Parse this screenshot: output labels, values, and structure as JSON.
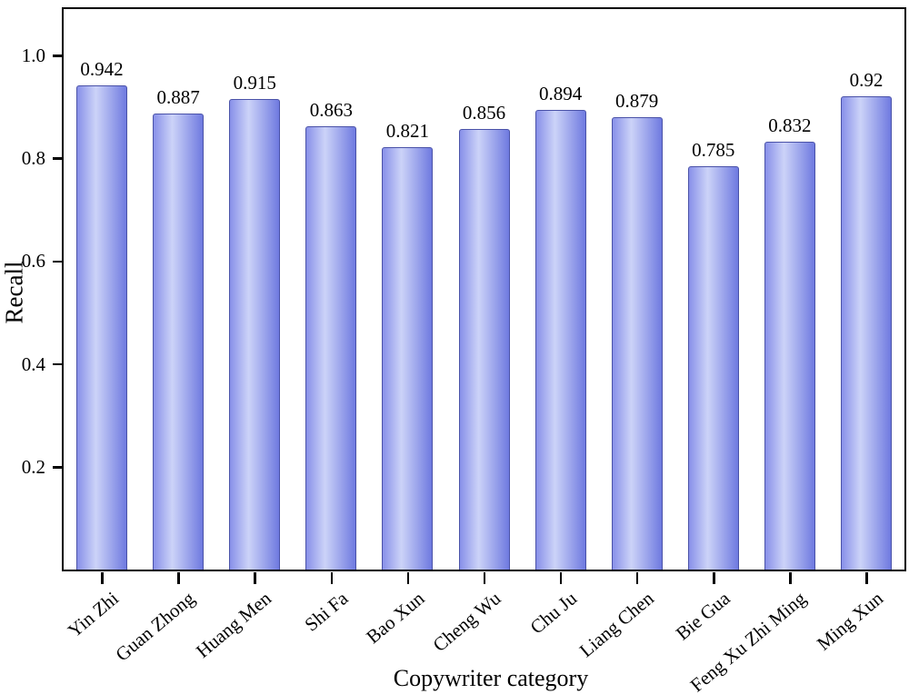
{
  "chart_data": {
    "type": "bar",
    "title": "",
    "xlabel": "Copywriter category",
    "ylabel": "Recall",
    "categories": [
      "Yin Zhi",
      "Guan Zhong",
      "Huang Men",
      "Shi Fa",
      "Bao Xun",
      "Cheng Wu",
      "Chu Ju",
      "Liang Chen",
      "Bie Gua",
      "Feng Xu Zhi Ming",
      "Ming Xun"
    ],
    "values": [
      0.942,
      0.887,
      0.915,
      0.863,
      0.821,
      0.856,
      0.894,
      0.879,
      0.785,
      0.832,
      0.92
    ],
    "value_labels": [
      "0.942",
      "0.887",
      "0.915",
      "0.863",
      "0.821",
      "0.856",
      "0.894",
      "0.879",
      "0.785",
      "0.832",
      "0.92"
    ],
    "ylim": [
      0,
      1.09
    ],
    "yticks": [
      0.2,
      0.4,
      0.6,
      0.8,
      1.0
    ],
    "ytick_labels": [
      "0.2",
      "0.4",
      "0.6",
      "0.8",
      "1.0"
    ],
    "grid": false,
    "legend": null,
    "xtick_label_rotation_deg": -40,
    "style": {
      "background_color": "#ffffff",
      "axis_color": "#000000",
      "text_color": "#000000",
      "bar_gradient_left": "#8890e9",
      "bar_gradient_highlight": "#ccd3f8",
      "bar_gradient_right": "#6f7ae0",
      "bar_highlight_stop": 0.38,
      "bar_border_color": "#4a52a8"
    }
  }
}
